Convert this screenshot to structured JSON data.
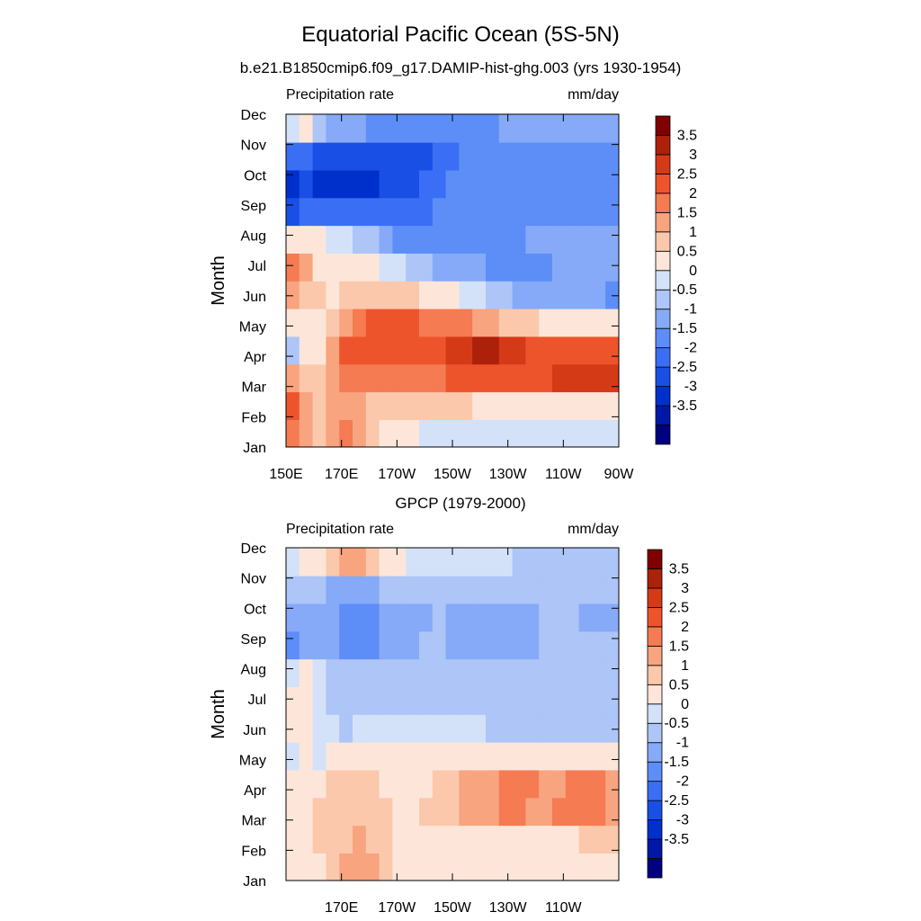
{
  "title": "Equatorial Pacific Ocean (5S-5N)",
  "colorbar": {
    "colors": [
      "#000080",
      "#0017a8",
      "#0030cc",
      "#1a4fe6",
      "#3a6ef5",
      "#5d8ef7",
      "#86aaf7",
      "#adc5f7",
      "#d3e2f8",
      "#fde6d9",
      "#fbc8ac",
      "#f8a47f",
      "#f57b52",
      "#ee542c",
      "#d53a17",
      "#ad200a",
      "#800000"
    ],
    "labels": [
      "3.5",
      "3",
      "2.5",
      "2",
      "1.5",
      "1",
      "0.5",
      "0",
      "-0.5",
      "-1",
      "-1.5",
      "-2",
      "-2.5",
      "-3",
      "-3.5"
    ]
  },
  "chart_data": [
    {
      "type": "heatmap",
      "subtitle": "b.e21.B1850cmip6.f09_g17.DAMIP-hist-ghg.003 (yrs 1930-1954)",
      "left_label": "Precipitation rate",
      "right_label": "mm/day",
      "ylabel": "Month",
      "y_ticks": [
        "Dec",
        "Nov",
        "Oct",
        "Sep",
        "Aug",
        "Jul",
        "Jun",
        "May",
        "Apr",
        "Mar",
        "Feb",
        "Jan"
      ],
      "x_ticks": [
        "150E",
        "170E",
        "170W",
        "150W",
        "130W",
        "110W",
        "90W"
      ],
      "x_range": [
        "150E",
        "90W"
      ],
      "months": [
        "Jan",
        "Feb",
        "Mar",
        "Apr",
        "May",
        "Jun",
        "Jul",
        "Aug",
        "Sep",
        "Oct",
        "Nov",
        "Dec"
      ],
      "lons": [
        "150E",
        "155E",
        "160E",
        "165E",
        "170E",
        "175E",
        "180",
        "175W",
        "170W",
        "165W",
        "160W",
        "155W",
        "150W",
        "145W",
        "140W",
        "135W",
        "130W",
        "125W",
        "120W",
        "115W",
        "110W",
        "105W",
        "100W",
        "95W",
        "90W"
      ],
      "values": [
        [
          2.0,
          1.5,
          1.2,
          1.5,
          2.0,
          1.5,
          1.0,
          0.7,
          0.5,
          0.5,
          0.3,
          0.2,
          0.2,
          0.2,
          0.2,
          0.1,
          0.1,
          0.0,
          0.0,
          0.0,
          0.0,
          0.0,
          0.0,
          0.0,
          0.0
        ],
        [
          2.5,
          1.8,
          1.2,
          1.5,
          1.8,
          1.5,
          1.2,
          1.0,
          1.0,
          1.0,
          1.0,
          1.0,
          1.0,
          1.0,
          0.8,
          0.8,
          0.5,
          0.5,
          0.5,
          0.5,
          0.5,
          0.5,
          0.5,
          0.5,
          0.5
        ],
        [
          1.5,
          1.0,
          1.0,
          1.5,
          2.0,
          2.0,
          2.0,
          2.0,
          2.0,
          2.0,
          2.0,
          2.2,
          2.5,
          2.5,
          2.5,
          2.5,
          2.5,
          2.5,
          2.5,
          2.8,
          3.0,
          3.0,
          3.0,
          3.0,
          3.0
        ],
        [
          -0.5,
          0.5,
          0.8,
          1.5,
          2.5,
          2.8,
          2.5,
          2.5,
          2.5,
          2.5,
          2.5,
          2.8,
          3.0,
          3.0,
          3.5,
          3.8,
          3.2,
          3.0,
          2.8,
          2.5,
          2.5,
          2.5,
          2.5,
          2.5,
          2.5
        ],
        [
          0.5,
          0.5,
          0.8,
          1.0,
          1.8,
          2.2,
          2.5,
          2.5,
          2.5,
          2.5,
          2.2,
          2.0,
          2.0,
          2.0,
          1.8,
          1.5,
          1.2,
          1.0,
          1.0,
          0.5,
          0.5,
          0.5,
          0.5,
          0.5,
          0.5
        ],
        [
          1.5,
          1.0,
          1.0,
          0.5,
          1.0,
          1.0,
          1.2,
          1.2,
          1.0,
          1.0,
          0.8,
          0.5,
          0.5,
          0.0,
          0.0,
          -0.5,
          -0.5,
          -0.8,
          -1.0,
          -1.0,
          -1.0,
          -1.0,
          -1.0,
          -1.0,
          -1.5
        ],
        [
          2.0,
          1.5,
          0.8,
          0.5,
          0.5,
          0.5,
          0.5,
          0.2,
          0.0,
          -0.5,
          -0.5,
          -0.8,
          -1.0,
          -1.0,
          -1.0,
          -1.2,
          -1.2,
          -1.2,
          -1.2,
          -1.2,
          -1.0,
          -1.0,
          -1.0,
          -1.0,
          -1.0
        ],
        [
          0.5,
          0.5,
          0.5,
          0.0,
          0.0,
          -0.2,
          -0.5,
          -1.0,
          -1.5,
          -1.5,
          -1.5,
          -1.5,
          -1.5,
          -1.5,
          -1.5,
          -1.5,
          -1.5,
          -1.2,
          -1.0,
          -1.0,
          -1.0,
          -1.0,
          -1.0,
          -1.0,
          -1.0
        ],
        [
          -2.5,
          -2.0,
          -2.0,
          -2.0,
          -2.0,
          -2.0,
          -2.0,
          -2.0,
          -2.0,
          -2.0,
          -1.8,
          -1.5,
          -1.5,
          -1.5,
          -1.5,
          -1.5,
          -1.5,
          -1.5,
          -1.5,
          -1.5,
          -1.5,
          -1.5,
          -1.2,
          -1.2,
          -1.5
        ],
        [
          -2.8,
          -2.5,
          -2.8,
          -3.0,
          -3.0,
          -3.0,
          -2.8,
          -2.5,
          -2.5,
          -2.5,
          -2.0,
          -1.8,
          -1.5,
          -1.5,
          -1.5,
          -1.5,
          -1.5,
          -1.5,
          -1.5,
          -1.5,
          -1.5,
          -1.5,
          -1.5,
          -1.5,
          -1.5
        ],
        [
          -2.0,
          -2.0,
          -2.5,
          -2.5,
          -2.5,
          -2.5,
          -2.5,
          -2.5,
          -2.5,
          -2.5,
          -2.5,
          -2.0,
          -1.8,
          -1.5,
          -1.5,
          -1.5,
          -1.5,
          -1.5,
          -1.5,
          -1.5,
          -1.5,
          -1.5,
          -1.5,
          -1.5,
          -1.5
        ],
        [
          0.3,
          0.5,
          -0.5,
          -1.0,
          -1.0,
          -1.0,
          -1.2,
          -1.5,
          -1.5,
          -1.5,
          -1.5,
          -1.5,
          -1.5,
          -1.5,
          -1.2,
          -1.2,
          -1.0,
          -1.0,
          -1.0,
          -1.0,
          -1.0,
          -1.0,
          -1.0,
          -1.0,
          -1.0
        ]
      ]
    },
    {
      "type": "heatmap",
      "subtitle": "GPCP (1979-2000)",
      "left_label": "Precipitation rate",
      "right_label": "mm/day",
      "ylabel": "Month",
      "y_ticks": [
        "Dec",
        "Nov",
        "Oct",
        "Sep",
        "Aug",
        "Jul",
        "Jun",
        "May",
        "Apr",
        "Mar",
        "Feb",
        "Jan"
      ],
      "x_ticks": [
        "170E",
        "170W",
        "150W",
        "130W",
        "110W"
      ],
      "x_range": [
        "150E",
        "90W"
      ],
      "months": [
        "Jan",
        "Feb",
        "Mar",
        "Apr",
        "May",
        "Jun",
        "Jul",
        "Aug",
        "Sep",
        "Oct",
        "Nov",
        "Dec"
      ],
      "lons": [
        "150E",
        "155E",
        "160E",
        "165E",
        "170E",
        "175E",
        "180",
        "175W",
        "170W",
        "165W",
        "160W",
        "155W",
        "150W",
        "145W",
        "140W",
        "135W",
        "130W",
        "125W",
        "120W",
        "115W",
        "110W",
        "105W",
        "100W",
        "95W",
        "90W"
      ],
      "values": [
        [
          0.5,
          0.5,
          0.8,
          1.0,
          1.5,
          1.8,
          1.5,
          1.0,
          0.5,
          0.5,
          0.5,
          0.5,
          0.5,
          0.5,
          0.5,
          0.5,
          0.5,
          0.5,
          0.5,
          0.5,
          0.5,
          0.5,
          0.5,
          0.5,
          0.5
        ],
        [
          0.5,
          0.5,
          1.0,
          1.2,
          1.0,
          1.5,
          1.2,
          1.0,
          0.5,
          0.5,
          0.5,
          0.5,
          0.5,
          0.5,
          0.5,
          0.5,
          0.5,
          0.5,
          0.5,
          0.5,
          0.5,
          0.8,
          1.0,
          1.0,
          1.0
        ],
        [
          0.5,
          0.5,
          1.0,
          1.0,
          1.2,
          1.2,
          1.2,
          1.0,
          0.5,
          0.8,
          1.0,
          1.0,
          1.2,
          1.5,
          1.8,
          1.8,
          2.0,
          2.0,
          1.8,
          1.8,
          2.0,
          2.0,
          2.2,
          2.0,
          1.5
        ],
        [
          0.5,
          0.5,
          0.5,
          1.0,
          1.0,
          1.0,
          1.0,
          0.5,
          0.5,
          0.5,
          0.5,
          1.0,
          1.2,
          1.5,
          1.5,
          1.5,
          2.0,
          2.0,
          2.0,
          1.8,
          1.5,
          2.0,
          2.0,
          2.0,
          1.8
        ],
        [
          0.0,
          0.5,
          0.0,
          0.5,
          0.5,
          0.5,
          0.5,
          0.5,
          0.5,
          0.5,
          0.5,
          0.5,
          0.5,
          0.5,
          0.5,
          0.5,
          0.5,
          0.5,
          0.5,
          0.5,
          0.5,
          0.5,
          0.5,
          0.5,
          0.5
        ],
        [
          0.5,
          0.5,
          0.0,
          0.0,
          -0.5,
          0.0,
          0.0,
          0.0,
          0.0,
          0.0,
          0.0,
          0.0,
          0.0,
          0.0,
          0.0,
          -0.3,
          -0.5,
          -0.5,
          -0.5,
          -0.5,
          -0.5,
          -0.5,
          -0.5,
          -0.5,
          -0.5
        ],
        [
          0.5,
          0.5,
          0.0,
          -0.5,
          -0.5,
          -0.5,
          -0.5,
          -0.5,
          -0.5,
          -0.5,
          -0.5,
          -0.5,
          -0.5,
          -0.5,
          -0.5,
          -0.5,
          -0.5,
          -0.5,
          -0.5,
          -0.5,
          -0.5,
          -0.5,
          -0.5,
          -0.5,
          -0.5
        ],
        [
          0.0,
          0.5,
          0.0,
          -0.5,
          -0.5,
          -0.5,
          -0.5,
          -0.5,
          -0.5,
          -0.5,
          -0.5,
          -0.5,
          -0.5,
          -0.5,
          -0.5,
          -0.5,
          -0.5,
          -0.5,
          -0.5,
          -0.5,
          -0.5,
          -0.5,
          -0.5,
          -0.5,
          -0.5
        ],
        [
          -1.5,
          -1.0,
          -1.0,
          -1.0,
          -1.5,
          -1.5,
          -1.5,
          -1.0,
          -1.0,
          -1.0,
          -0.5,
          -0.5,
          -1.0,
          -1.0,
          -1.0,
          -1.0,
          -1.0,
          -1.0,
          -1.0,
          -0.5,
          -0.5,
          -0.5,
          -0.5,
          -0.5,
          -0.5
        ],
        [
          -1.0,
          -1.0,
          -1.0,
          -1.0,
          -1.5,
          -1.5,
          -1.5,
          -1.0,
          -1.0,
          -1.0,
          -1.0,
          -0.5,
          -1.0,
          -1.0,
          -1.0,
          -1.0,
          -1.0,
          -1.0,
          -1.0,
          -0.5,
          -0.5,
          -0.5,
          -1.0,
          -1.0,
          -1.0
        ],
        [
          -0.5,
          -0.5,
          -0.5,
          -1.0,
          -1.0,
          -1.0,
          -1.0,
          -0.5,
          -0.5,
          -0.5,
          -0.5,
          -0.5,
          -0.5,
          -0.5,
          -0.5,
          -0.5,
          -0.5,
          -0.5,
          -0.5,
          -0.5,
          -0.5,
          -0.5,
          -0.5,
          -0.5,
          -0.5
        ],
        [
          0.0,
          0.5,
          0.5,
          1.0,
          1.5,
          1.5,
          1.0,
          0.5,
          0.5,
          0.0,
          0.0,
          0.0,
          0.0,
          0.0,
          0.0,
          0.0,
          0.0,
          -0.5,
          -0.5,
          -0.5,
          -0.5,
          -0.5,
          -0.5,
          -0.5,
          -0.5
        ]
      ]
    }
  ]
}
